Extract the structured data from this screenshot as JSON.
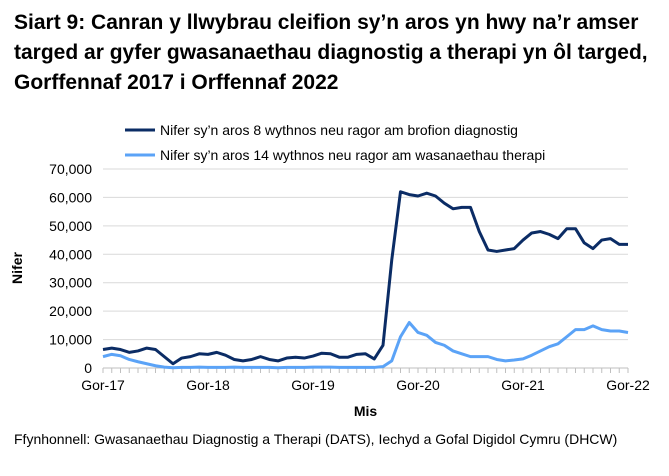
{
  "chart_data": {
    "type": "line",
    "title": "Siart 9: Canran y llwybrau cleifion sy’n aros yn hwy na’r amser targed ar gyfer gwasanaethau diagnostig a therapi yn ôl targed, Gorffennaf 2017 i Orffennaf 2022",
    "xlabel": "Mis",
    "ylabel": "Nifer",
    "ylim": [
      0,
      70000
    ],
    "yticks": [
      "0",
      "10,000",
      "20,000",
      "30,000",
      "40,000",
      "50,000",
      "60,000",
      "70,000"
    ],
    "xtick_labels": [
      "Gor-17",
      "Gor-18",
      "Gor-19",
      "Gor-20",
      "Gor-21",
      "Gor-22"
    ],
    "x_start": "Jul 2017",
    "x_end": "Jul 2022",
    "n_points": 61,
    "legend_position": "top",
    "series": [
      {
        "name": "Nifer sy’n aros 8 wythnos neu ragor am brofion diagnostig",
        "color": "#0b2c65",
        "values": [
          6500,
          7000,
          6500,
          5500,
          6000,
          7000,
          6500,
          4000,
          1500,
          3500,
          4000,
          5000,
          4800,
          5500,
          4500,
          3000,
          2500,
          3000,
          4000,
          3000,
          2500,
          3500,
          3800,
          3500,
          4200,
          5200,
          5000,
          3800,
          3800,
          4800,
          5000,
          3200,
          8000,
          38000,
          62000,
          61000,
          60500,
          61500,
          60500,
          58000,
          56000,
          56500,
          56500,
          48000,
          41500,
          41000,
          41500,
          42000,
          45000,
          47500,
          48000,
          47000,
          45500,
          49000,
          49000,
          44000,
          42000,
          45000,
          45500,
          43500,
          43500
        ]
      },
      {
        "name": "Nifer sy’n aros 14 wythnos neu ragor am wasanaethau therapi",
        "color": "#5ba3f7",
        "values": [
          4000,
          4800,
          4300,
          3000,
          2200,
          1500,
          800,
          300,
          100,
          200,
          200,
          300,
          200,
          200,
          200,
          300,
          200,
          200,
          200,
          200,
          100,
          200,
          200,
          200,
          300,
          300,
          300,
          200,
          200,
          200,
          200,
          200,
          500,
          2500,
          11000,
          16000,
          12500,
          11500,
          9000,
          8000,
          6000,
          5000,
          4000,
          4000,
          4000,
          3000,
          2500,
          2800,
          3200,
          4500,
          6000,
          7500,
          8500,
          11000,
          13500,
          13500,
          14800,
          13500,
          13000,
          13000,
          12500
        ]
      }
    ]
  },
  "source": "Ffynhonnell: Gwasanaethau Diagnostig a Therapi (DATS), Iechyd a Gofal Digidol Cymru (DHCW)"
}
